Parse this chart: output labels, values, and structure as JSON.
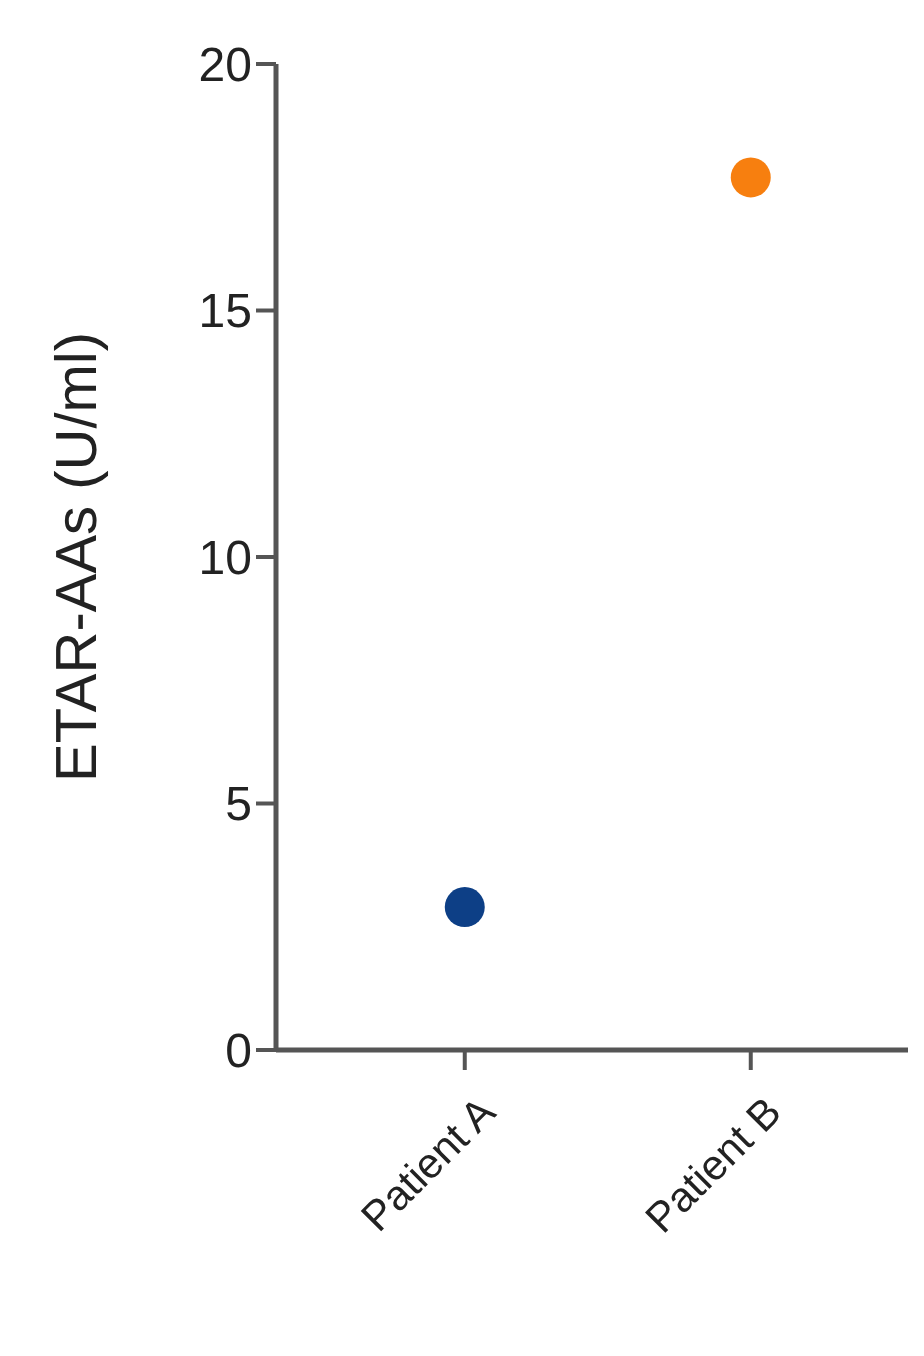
{
  "chart_data": {
    "type": "scatter",
    "ylabel": "ETAR-AAs (U/ml)",
    "categories": [
      "Patient A",
      "Patient B"
    ],
    "values": [
      2.9,
      17.7
    ],
    "colors": [
      "#0d3f86",
      "#f77f0f"
    ],
    "ylim": [
      0,
      20
    ],
    "yticks": [
      0,
      5,
      10,
      15,
      20
    ],
    "marker": "circle",
    "grid": false
  }
}
